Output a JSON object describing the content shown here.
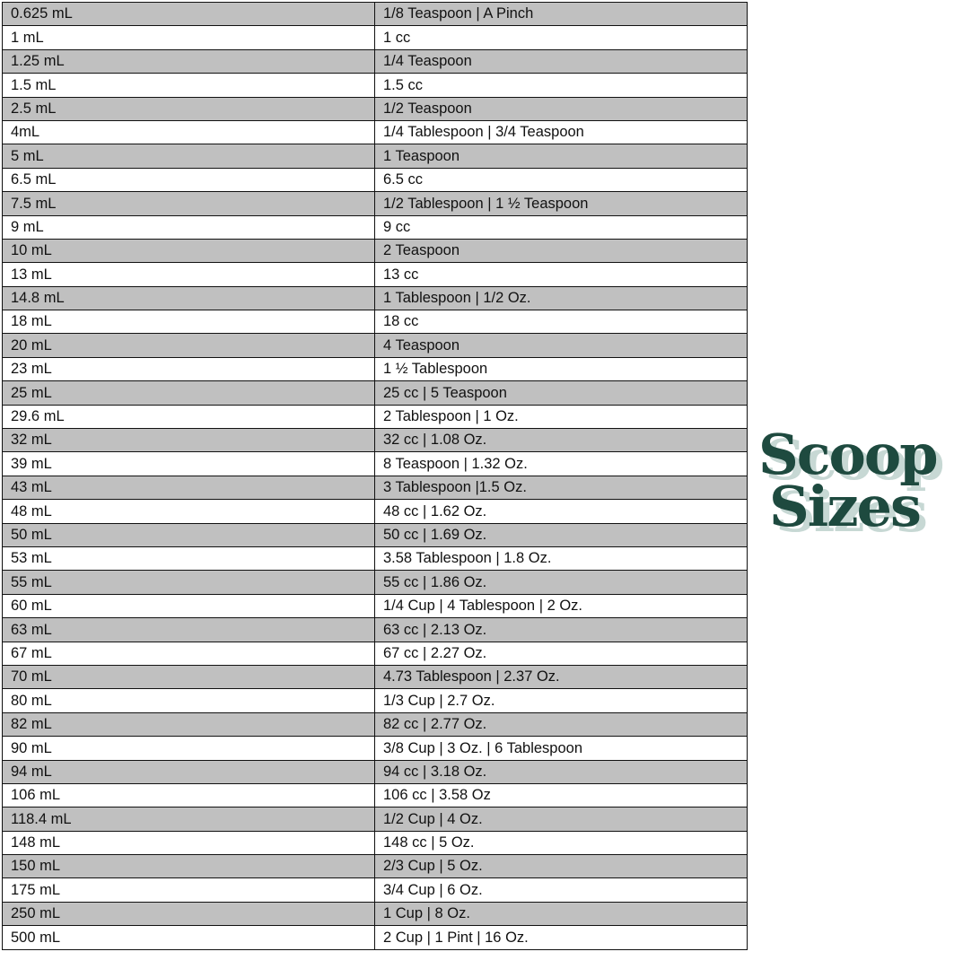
{
  "rows": [
    [
      "0.625 mL",
      "1/8 Teaspoon | A Pinch"
    ],
    [
      "1 mL",
      "1 cc"
    ],
    [
      "1.25 mL",
      "1/4 Teaspoon"
    ],
    [
      "1.5 mL",
      "1.5 cc"
    ],
    [
      "2.5 mL",
      "1/2 Teaspoon"
    ],
    [
      "4mL",
      "1/4 Tablespoon | 3/4 Teaspoon"
    ],
    [
      "5 mL",
      "1 Teaspoon"
    ],
    [
      "6.5 mL",
      "6.5 cc"
    ],
    [
      "7.5 mL",
      "1/2 Tablespoon | 1 ½ Teaspoon"
    ],
    [
      "9 mL",
      "9 cc"
    ],
    [
      "10 mL",
      "2 Teaspoon"
    ],
    [
      "13 mL",
      "13 cc"
    ],
    [
      "14.8 mL",
      "1 Tablespoon | 1/2 Oz."
    ],
    [
      "18 mL",
      "18 cc"
    ],
    [
      "20 mL",
      "4 Teaspoon"
    ],
    [
      "23 mL",
      "1 ½ Tablespoon"
    ],
    [
      "25 mL",
      "25 cc | 5 Teaspoon"
    ],
    [
      "29.6 mL",
      "2 Tablespoon | 1 Oz."
    ],
    [
      "32 mL",
      "32 cc | 1.08 Oz."
    ],
    [
      "39 mL",
      "8 Teaspoon | 1.32 Oz."
    ],
    [
      "43 mL",
      "3 Tablespoon |1.5 Oz."
    ],
    [
      "48 mL",
      "48 cc | 1.62 Oz."
    ],
    [
      "50 mL",
      "50 cc | 1.69 Oz."
    ],
    [
      "53 mL",
      "3.58 Tablespoon | 1.8 Oz."
    ],
    [
      "55 mL",
      "55 cc | 1.86 Oz."
    ],
    [
      "60 mL",
      "1/4 Cup | 4 Tablespoon | 2 Oz."
    ],
    [
      "63 mL",
      "63 cc | 2.13 Oz."
    ],
    [
      "67 mL",
      "67 cc | 2.27 Oz."
    ],
    [
      "70 mL",
      "4.73 Tablespoon | 2.37 Oz."
    ],
    [
      "80 mL",
      "1/3 Cup | 2.7 Oz."
    ],
    [
      "82 mL",
      "82 cc | 2.77 Oz."
    ],
    [
      "90 mL",
      "3/8 Cup | 3 Oz. | 6 Tablespoon"
    ],
    [
      "94 mL",
      "94 cc | 3.18 Oz."
    ],
    [
      "106 mL",
      "106 cc | 3.58 Oz"
    ],
    [
      "118.4 mL",
      "1/2 Cup | 4 Oz."
    ],
    [
      "148 mL",
      "148 cc | 5 Oz."
    ],
    [
      "150 mL",
      "2/3 Cup | 5 Oz."
    ],
    [
      "175 mL",
      "3/4 Cup | 6 Oz."
    ],
    [
      "250 mL",
      "1 Cup | 8 Oz."
    ],
    [
      "500 mL",
      "2 Cup | 1 Pint | 16 Oz."
    ]
  ],
  "logo": {
    "line1": "Scoop",
    "line2": "Sizes"
  },
  "colors": {
    "shade": "#c0c0c0",
    "logo": "#1e4a3f",
    "logo_shadow": "#c7d8d4"
  }
}
